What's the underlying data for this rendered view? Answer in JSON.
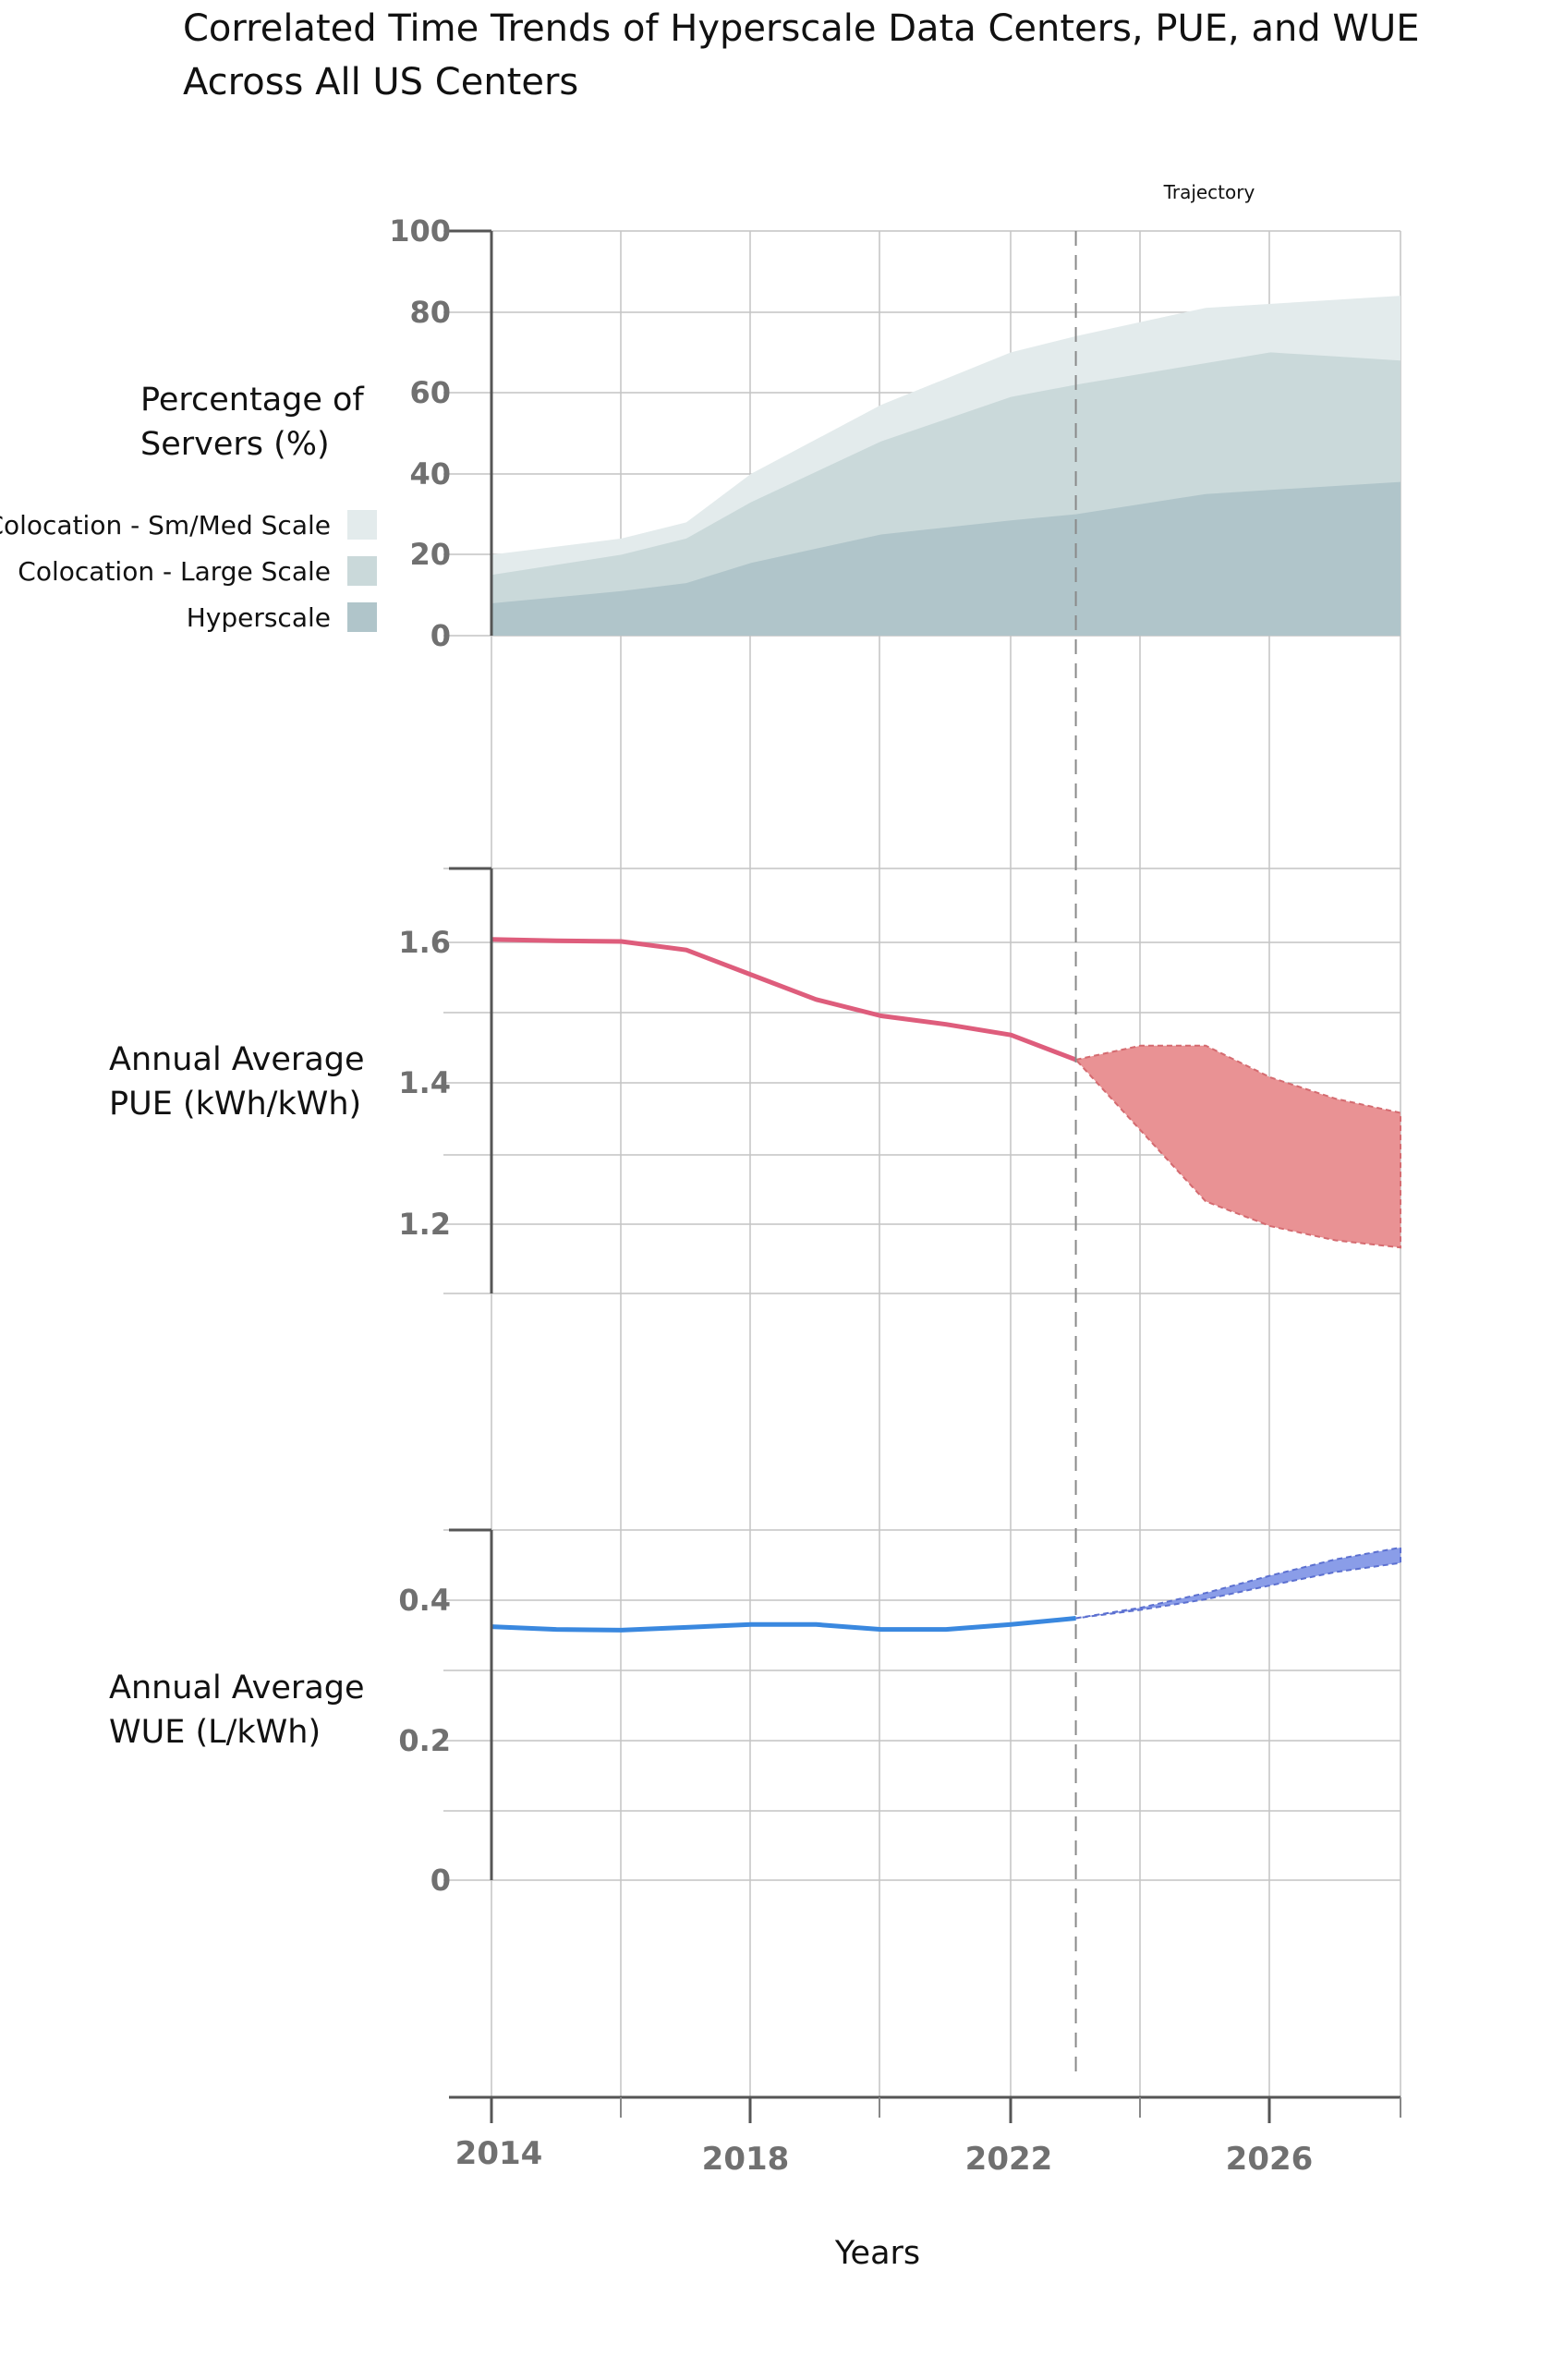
{
  "title": {
    "line1": "Correlated Time Trends of Hyperscale Data Centers, PUE, and WUE",
    "line2": "Across All US Centers"
  },
  "trajectory_label": "Trajectory",
  "x_axis": {
    "label": "Years",
    "tick_labels": [
      "2014",
      "2018",
      "2022",
      "2026"
    ]
  },
  "chart_data": [
    {
      "type": "area",
      "ylabel_lines": [
        "Percentage of",
        "Servers (%)"
      ],
      "xlim": [
        2014,
        2028
      ],
      "ylim": [
        0,
        100
      ],
      "y_ticks": [
        "100",
        "80",
        "60",
        "40",
        "20",
        "0"
      ],
      "legend": [
        {
          "label": "Colocation - Sm/Med Scale",
          "color": "#e3ebec"
        },
        {
          "label": "Colocation - Large Scale",
          "color": "#cad9da"
        },
        {
          "label": "Hyperscale",
          "color": "#b0c5ca"
        }
      ],
      "series": [
        {
          "name": "Colocation - Sm/Med Scale",
          "color": "#e3ebec",
          "x": [
            2014,
            2016,
            2017,
            2018,
            2020,
            2022,
            2023,
            2025,
            2027,
            2028
          ],
          "y": [
            20,
            24,
            28,
            40,
            57,
            70,
            74,
            81,
            83,
            84
          ]
        },
        {
          "name": "Colocation - Large Scale",
          "color": "#cad9da",
          "x": [
            2014,
            2016,
            2017,
            2018,
            2020,
            2022,
            2023,
            2026,
            2027,
            2028
          ],
          "y": [
            15,
            20,
            24,
            33,
            48,
            59,
            62,
            70,
            69,
            68
          ]
        },
        {
          "name": "Hyperscale",
          "color": "#b0c5ca",
          "x": [
            2014,
            2016,
            2017,
            2018,
            2020,
            2022,
            2023,
            2025,
            2026,
            2028
          ],
          "y": [
            8,
            11,
            13,
            18,
            25,
            28.5,
            30,
            35,
            36,
            38
          ]
        }
      ]
    },
    {
      "type": "line",
      "ylabel_lines": [
        "Annual Average",
        "PUE (kWh/kWh)"
      ],
      "xlim": [
        2014,
        2028
      ],
      "ylim": [
        1.1,
        1.7
      ],
      "y_ticks": [
        "1.6",
        "1.4",
        "1.2"
      ],
      "series": [
        {
          "name": "PUE",
          "color": "#de5d7c",
          "x": [
            2014,
            2015,
            2016,
            2017,
            2018,
            2019,
            2020,
            2021,
            2022,
            2023
          ],
          "y": [
            1.6,
            1.598,
            1.597,
            1.585,
            1.55,
            1.515,
            1.492,
            1.48,
            1.465,
            1.43
          ]
        }
      ],
      "band": {
        "name": "PUE trajectory",
        "color": "#e99294",
        "x": [
          2023,
          2024,
          2025,
          2026,
          2027,
          2028
        ],
        "upper": [
          1.43,
          1.45,
          1.45,
          1.405,
          1.375,
          1.355
        ],
        "lower": [
          1.43,
          1.33,
          1.23,
          1.195,
          1.175,
          1.165
        ]
      }
    },
    {
      "type": "line",
      "ylabel_lines": [
        "Annual Average",
        "WUE (L/kWh)"
      ],
      "xlim": [
        2014,
        2028
      ],
      "ylim": [
        0,
        0.5
      ],
      "y_ticks": [
        "0.4",
        "0.2",
        "0"
      ],
      "series": [
        {
          "name": "WUE",
          "color": "#3a88df",
          "x": [
            2014,
            2015,
            2016,
            2017,
            2018,
            2019,
            2020,
            2021,
            2022,
            2023
          ],
          "y": [
            0.362,
            0.358,
            0.357,
            0.361,
            0.365,
            0.365,
            0.358,
            0.358,
            0.365,
            0.374
          ]
        }
      ],
      "band": {
        "name": "WUE trajectory",
        "color": "#8a9de8",
        "x": [
          2023,
          2024,
          2025,
          2026,
          2027,
          2028
        ],
        "upper": [
          0.374,
          0.389,
          0.41,
          0.435,
          0.458,
          0.475
        ],
        "lower": [
          0.374,
          0.386,
          0.401,
          0.421,
          0.44,
          0.453
        ]
      }
    }
  ]
}
